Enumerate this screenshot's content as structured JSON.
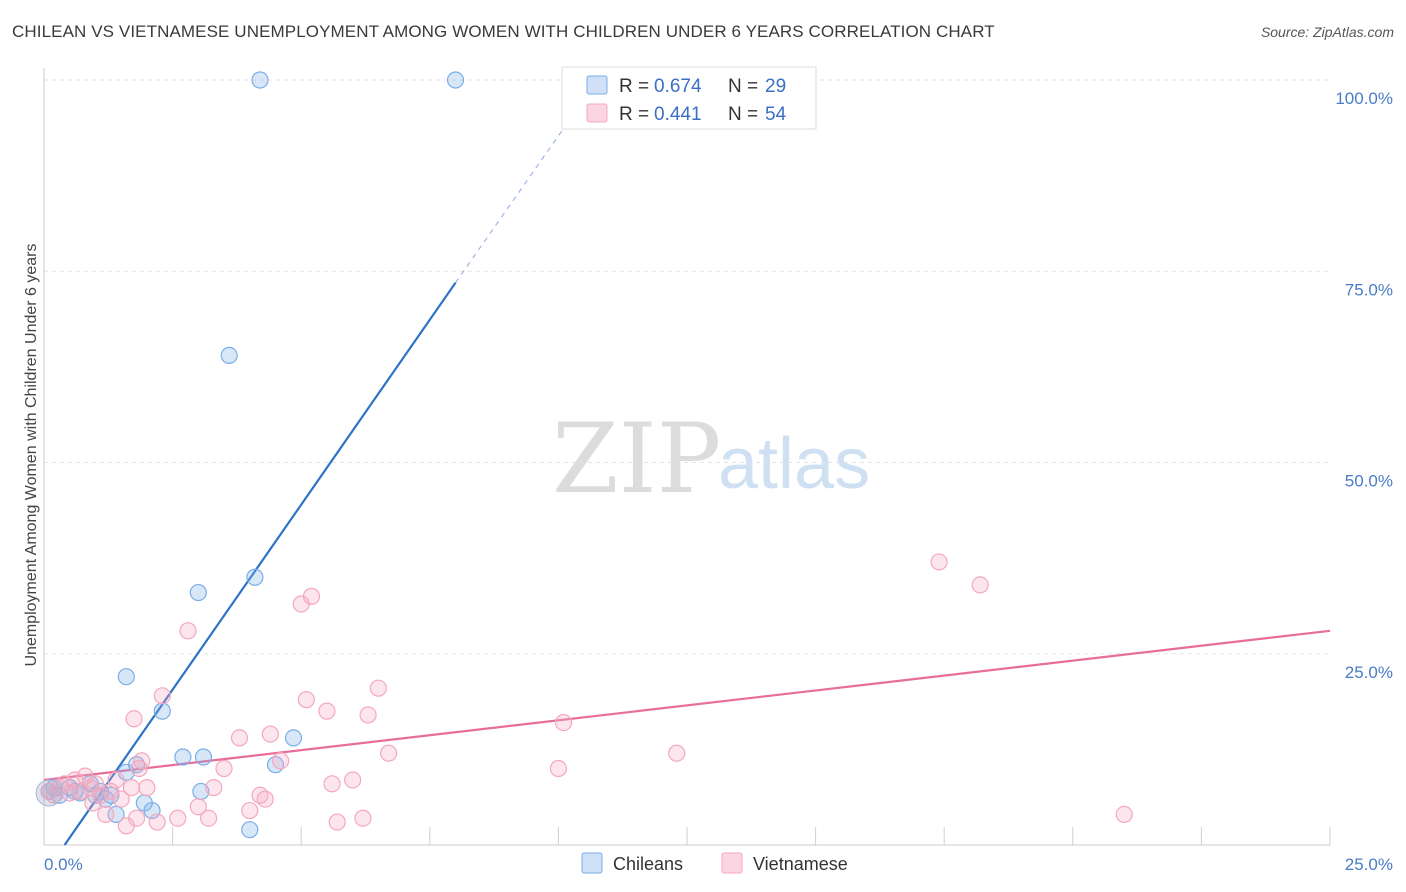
{
  "header": {
    "title": "CHILEAN VS VIETNAMESE UNEMPLOYMENT AMONG WOMEN WITH CHILDREN UNDER 6 YEARS CORRELATION CHART",
    "source": "Source: ZipAtlas.com"
  },
  "watermark": {
    "part1": "ZIP",
    "part2": "atlas"
  },
  "legend": {
    "r_label": "R =",
    "n_label": "N =",
    "rows": [
      {
        "r": "0.674",
        "n": "29",
        "color": "#7aaee8"
      },
      {
        "r": "0.441",
        "n": "54",
        "color": "#f4a8bf"
      }
    ]
  },
  "bottom_legend": {
    "series1": "Chileans",
    "series2": "Vietnamese"
  },
  "chart_data": {
    "type": "scatter",
    "ylabel": "Unemployment Among Women with Children Under 6 years",
    "xlim": [
      0,
      25
    ],
    "ylim": [
      0,
      100
    ],
    "x_ticks": [
      {
        "value": 0,
        "label": "0.0%"
      },
      {
        "value": 25,
        "label": "25.0%"
      }
    ],
    "y_ticks": [
      {
        "value": 25,
        "label": "25.0%"
      },
      {
        "value": 50,
        "label": "50.0%"
      },
      {
        "value": 75,
        "label": "75.0%"
      },
      {
        "value": 100,
        "label": "100.0%"
      }
    ],
    "grid": true,
    "legend_position": "top-center",
    "series": [
      {
        "name": "Chileans",
        "color": "#7aaee8",
        "line_color": "#2f72c9",
        "trend": {
          "x": [
            0.4,
            8.0
          ],
          "y": [
            0.0,
            73.5
          ]
        },
        "trend_dashed": {
          "x": [
            8.0,
            10.5
          ],
          "y": [
            73.5,
            97.5
          ]
        },
        "points": [
          [
            0.1,
            7.0
          ],
          [
            0.3,
            6.5
          ],
          [
            0.5,
            7.5
          ],
          [
            0.6,
            7.0
          ],
          [
            0.9,
            8.0
          ],
          [
            1.0,
            6.5
          ],
          [
            1.1,
            7.0
          ],
          [
            1.3,
            6.5
          ],
          [
            1.4,
            4.0
          ],
          [
            1.6,
            9.5
          ],
          [
            1.8,
            10.5
          ],
          [
            1.95,
            5.5
          ],
          [
            2.1,
            4.5
          ],
          [
            2.3,
            17.5
          ],
          [
            1.6,
            22.0
          ],
          [
            2.7,
            11.5
          ],
          [
            3.0,
            33.0
          ],
          [
            3.05,
            7.0
          ],
          [
            3.1,
            11.5
          ],
          [
            3.6,
            64.0
          ],
          [
            4.0,
            2.0
          ],
          [
            4.1,
            35.0
          ],
          [
            4.5,
            10.5
          ],
          [
            4.85,
            14.0
          ],
          [
            4.2,
            100.0
          ],
          [
            8.0,
            100.0
          ],
          [
            0.2,
            7.5
          ],
          [
            0.7,
            6.8
          ],
          [
            1.2,
            6.0
          ]
        ]
      },
      {
        "name": "Vietnamese",
        "color": "#f4a8bf",
        "line_color": "#e86d9a",
        "trend": {
          "x": [
            0.0,
            25.0
          ],
          "y": [
            8.5,
            28.0
          ]
        },
        "points": [
          [
            0.1,
            7.0
          ],
          [
            0.2,
            6.5
          ],
          [
            0.3,
            7.5
          ],
          [
            0.4,
            8.0
          ],
          [
            0.5,
            6.8
          ],
          [
            0.6,
            8.5
          ],
          [
            0.7,
            7.0
          ],
          [
            0.8,
            9.0
          ],
          [
            0.9,
            7.5
          ],
          [
            1.0,
            8.0
          ],
          [
            1.1,
            6.5
          ],
          [
            1.2,
            4.0
          ],
          [
            1.3,
            7.0
          ],
          [
            1.4,
            8.5
          ],
          [
            1.5,
            6.0
          ],
          [
            1.6,
            2.5
          ],
          [
            1.7,
            7.5
          ],
          [
            1.8,
            3.5
          ],
          [
            1.85,
            10.0
          ],
          [
            1.9,
            11.0
          ],
          [
            2.0,
            7.5
          ],
          [
            2.2,
            3.0
          ],
          [
            2.3,
            19.5
          ],
          [
            2.6,
            3.5
          ],
          [
            2.8,
            28.0
          ],
          [
            3.0,
            5.0
          ],
          [
            3.2,
            3.5
          ],
          [
            3.3,
            7.5
          ],
          [
            3.5,
            10.0
          ],
          [
            3.8,
            14.0
          ],
          [
            4.0,
            4.5
          ],
          [
            4.2,
            6.5
          ],
          [
            4.3,
            6.0
          ],
          [
            4.4,
            14.5
          ],
          [
            4.6,
            11.0
          ],
          [
            5.0,
            31.5
          ],
          [
            5.1,
            19.0
          ],
          [
            5.2,
            32.5
          ],
          [
            5.5,
            17.5
          ],
          [
            5.6,
            8.0
          ],
          [
            5.7,
            3.0
          ],
          [
            6.0,
            8.5
          ],
          [
            6.2,
            3.5
          ],
          [
            6.3,
            17.0
          ],
          [
            6.5,
            20.5
          ],
          [
            6.7,
            12.0
          ],
          [
            10.0,
            10.0
          ],
          [
            10.1,
            16.0
          ],
          [
            12.3,
            12.0
          ],
          [
            17.4,
            37.0
          ],
          [
            18.2,
            34.0
          ],
          [
            21.0,
            4.0
          ],
          [
            1.75,
            16.5
          ],
          [
            0.95,
            5.5
          ]
        ]
      }
    ]
  }
}
